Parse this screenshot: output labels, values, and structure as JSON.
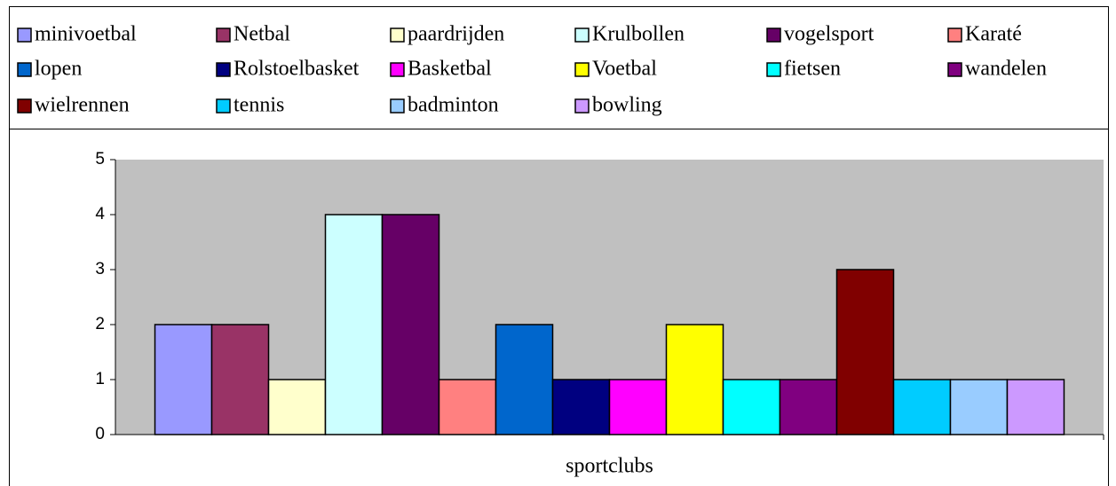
{
  "chart_data": {
    "type": "bar",
    "categories": [
      "sportclubs"
    ],
    "series": [
      {
        "name": "minivoetbal",
        "color": "#9999FF",
        "values": [
          2
        ]
      },
      {
        "name": "Netbal",
        "color": "#993366",
        "values": [
          2
        ]
      },
      {
        "name": "paardrijden",
        "color": "#FFFFCC",
        "values": [
          1
        ]
      },
      {
        "name": "Krulbollen",
        "color": "#CCFFFF",
        "values": [
          4
        ]
      },
      {
        "name": "vogelsport",
        "color": "#660066",
        "values": [
          4
        ]
      },
      {
        "name": "Karaté",
        "color": "#FF8080",
        "values": [
          1
        ]
      },
      {
        "name": "lopen",
        "color": "#0066CC",
        "values": [
          2
        ]
      },
      {
        "name": "Rolstoelbasket",
        "color": "#000080",
        "values": [
          1
        ]
      },
      {
        "name": "Basketbal",
        "color": "#FF00FF",
        "values": [
          1
        ]
      },
      {
        "name": "Voetbal",
        "color": "#FFFF00",
        "values": [
          2
        ]
      },
      {
        "name": "fietsen",
        "color": "#00FFFF",
        "values": [
          1
        ]
      },
      {
        "name": "wandelen",
        "color": "#800080",
        "values": [
          1
        ]
      },
      {
        "name": "wielrennen",
        "color": "#800000",
        "values": [
          3
        ]
      },
      {
        "name": "tennis",
        "color": "#00CCFF",
        "values": [
          1
        ]
      },
      {
        "name": "badminton",
        "color": "#99CCFF",
        "values": [
          1
        ]
      },
      {
        "name": "bowling",
        "color": "#CC99FF",
        "values": [
          1
        ]
      }
    ],
    "ylim": [
      0,
      5
    ],
    "yticks": [
      0,
      1,
      2,
      3,
      4,
      5
    ],
    "grid": false,
    "legend": "top",
    "plot_background": "#C0C0C0"
  }
}
